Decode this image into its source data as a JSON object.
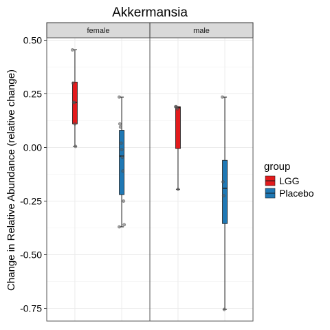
{
  "chart_data": {
    "type": "boxplot",
    "title": "Akkermansia",
    "ylabel": "Change in Relative Abundance (relative change)",
    "xlabel": "",
    "ylim": [
      -0.82,
      0.55
    ],
    "yticks": [
      0.5,
      0.25,
      0.0,
      -0.25,
      -0.5,
      -0.75
    ],
    "ytick_labels": [
      "0.50",
      "0.25",
      "0.00",
      "-0.25",
      "-0.50",
      "-0.75"
    ],
    "grid": true,
    "legend": {
      "title": "group",
      "position": "right",
      "entries": [
        {
          "label": "LGG",
          "color": "#e31a1c"
        },
        {
          "label": "Placebo",
          "color": "#1f78b4"
        }
      ]
    },
    "facets": [
      {
        "label": "female",
        "boxes": [
          {
            "group": "LGG",
            "min": 0.005,
            "q1": 0.11,
            "median": 0.21,
            "q3": 0.305,
            "max": 0.455,
            "points": [
              0.455,
              0.3,
              0.21,
              0.21,
              0.11,
              0.005
            ]
          },
          {
            "group": "Placebo",
            "min": -0.37,
            "q1": -0.22,
            "median": -0.04,
            "q3": 0.08,
            "max": 0.235,
            "points": [
              0.235,
              0.11,
              0.095,
              0.02,
              -0.01,
              -0.045,
              -0.11,
              -0.25,
              -0.36,
              -0.37
            ]
          }
        ]
      },
      {
        "label": "male",
        "boxes": [
          {
            "group": "LGG",
            "min": -0.195,
            "q1": -0.005,
            "median": 0.185,
            "q3": 0.19,
            "max": 0.19,
            "points": [
              0.19,
              0.19,
              0.185,
              0.18,
              -0.195
            ]
          },
          {
            "group": "Placebo",
            "min": -0.755,
            "q1": -0.355,
            "median": -0.19,
            "q3": -0.06,
            "max": 0.235,
            "points": [
              0.235,
              -0.16,
              -0.225,
              -0.755
            ]
          }
        ]
      }
    ]
  }
}
